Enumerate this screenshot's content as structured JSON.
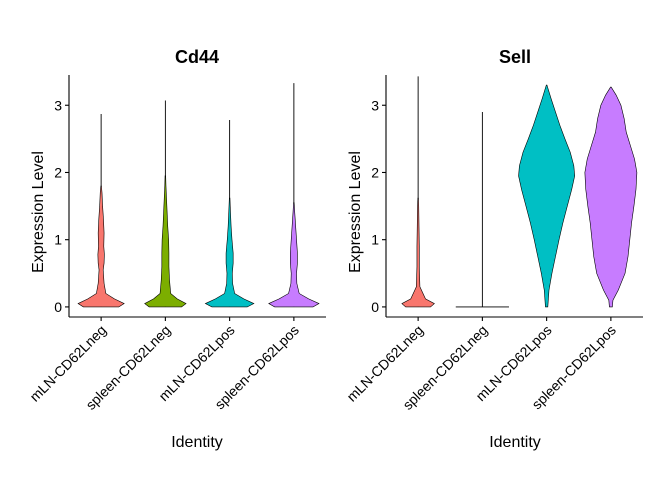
{
  "chart_data": [
    {
      "type": "violin",
      "title": "Cd44",
      "xlabel": "Identity",
      "ylabel": "Expression Level",
      "ylim": [
        -0.15,
        3.45
      ],
      "yticks": [
        0,
        1,
        2,
        3
      ],
      "categories": [
        "mLN-CD62Lneg",
        "spleen-CD62Lneg",
        "mLN-CD62Lpos",
        "spleen-CD62Lpos"
      ],
      "colors": [
        "#F8766D",
        "#7CAE00",
        "#00BFC4",
        "#C77CFF"
      ],
      "series": [
        {
          "max": 2.87,
          "upper": 1.8,
          "shape": [
            [
              0,
              0.6
            ],
            [
              0.05,
              0.78
            ],
            [
              0.12,
              0.45
            ],
            [
              0.2,
              0.16
            ],
            [
              0.35,
              0.1
            ],
            [
              0.55,
              0.07
            ],
            [
              0.65,
              0.1
            ],
            [
              0.78,
              0.11
            ],
            [
              0.9,
              0.09
            ],
            [
              1.1,
              0.1
            ],
            [
              1.3,
              0.08
            ],
            [
              1.5,
              0.05
            ],
            [
              1.7,
              0.03
            ],
            [
              1.8,
              0.01
            ]
          ]
        },
        {
          "max": 3.07,
          "upper": 1.95,
          "shape": [
            [
              0,
              0.55
            ],
            [
              0.05,
              0.7
            ],
            [
              0.12,
              0.4
            ],
            [
              0.2,
              0.18
            ],
            [
              0.4,
              0.14
            ],
            [
              0.6,
              0.12
            ],
            [
              0.8,
              0.12
            ],
            [
              1.0,
              0.11
            ],
            [
              1.2,
              0.08
            ],
            [
              1.4,
              0.06
            ],
            [
              1.6,
              0.04
            ],
            [
              1.8,
              0.02
            ],
            [
              1.95,
              0.01
            ]
          ]
        },
        {
          "max": 2.78,
          "upper": 1.62,
          "shape": [
            [
              0,
              0.6
            ],
            [
              0.05,
              0.82
            ],
            [
              0.12,
              0.48
            ],
            [
              0.2,
              0.17
            ],
            [
              0.35,
              0.1
            ],
            [
              0.5,
              0.09
            ],
            [
              0.65,
              0.12
            ],
            [
              0.8,
              0.12
            ],
            [
              1.0,
              0.08
            ],
            [
              1.2,
              0.05
            ],
            [
              1.4,
              0.03
            ],
            [
              1.62,
              0.01
            ]
          ]
        },
        {
          "max": 3.33,
          "upper": 1.55,
          "shape": [
            [
              0,
              0.65
            ],
            [
              0.05,
              0.85
            ],
            [
              0.12,
              0.5
            ],
            [
              0.2,
              0.18
            ],
            [
              0.35,
              0.1
            ],
            [
              0.5,
              0.09
            ],
            [
              0.65,
              0.12
            ],
            [
              0.8,
              0.12
            ],
            [
              1.0,
              0.09
            ],
            [
              1.2,
              0.06
            ],
            [
              1.4,
              0.03
            ],
            [
              1.55,
              0.01
            ]
          ]
        }
      ]
    },
    {
      "type": "violin",
      "title": "Sell",
      "xlabel": "Identity",
      "ylabel": "Expression Level",
      "ylim": [
        -0.15,
        3.45
      ],
      "yticks": [
        0,
        1,
        2,
        3
      ],
      "categories": [
        "mLN-CD62Lneg",
        "spleen-CD62Lneg",
        "mLN-CD62Lpos",
        "spleen-CD62Lpos"
      ],
      "colors": [
        "#F8766D",
        "#7CAE00",
        "#00BFC4",
        "#C77CFF"
      ],
      "series": [
        {
          "max": 3.43,
          "upper": 1.62,
          "shape": [
            [
              0,
              0.42
            ],
            [
              0.05,
              0.55
            ],
            [
              0.12,
              0.25
            ],
            [
              0.3,
              0.06
            ],
            [
              0.6,
              0.04
            ],
            [
              0.9,
              0.04
            ],
            [
              1.2,
              0.03
            ],
            [
              1.5,
              0.02
            ],
            [
              1.62,
              0.01
            ]
          ]
        },
        {
          "max": 2.9,
          "upper": 0.0,
          "shape": [
            [
              0,
              0.9
            ]
          ]
        },
        {
          "max": 3.3,
          "upper": 3.3,
          "shape": [
            [
              0,
              0.04
            ],
            [
              0.25,
              0.08
            ],
            [
              0.5,
              0.18
            ],
            [
              0.75,
              0.3
            ],
            [
              1.0,
              0.42
            ],
            [
              1.25,
              0.55
            ],
            [
              1.5,
              0.7
            ],
            [
              1.75,
              0.85
            ],
            [
              1.95,
              0.95
            ],
            [
              2.1,
              0.92
            ],
            [
              2.3,
              0.8
            ],
            [
              2.5,
              0.62
            ],
            [
              2.7,
              0.45
            ],
            [
              2.9,
              0.3
            ],
            [
              3.1,
              0.15
            ],
            [
              3.3,
              0.01
            ]
          ]
        },
        {
          "max": 3.27,
          "upper": 3.27,
          "shape": [
            [
              0,
              0.05
            ],
            [
              0.1,
              0.07
            ],
            [
              0.25,
              0.25
            ],
            [
              0.5,
              0.48
            ],
            [
              0.75,
              0.58
            ],
            [
              1.0,
              0.64
            ],
            [
              1.25,
              0.7
            ],
            [
              1.5,
              0.78
            ],
            [
              1.75,
              0.85
            ],
            [
              2.0,
              0.88
            ],
            [
              2.2,
              0.8
            ],
            [
              2.4,
              0.66
            ],
            [
              2.6,
              0.52
            ],
            [
              2.8,
              0.45
            ],
            [
              3.0,
              0.34
            ],
            [
              3.15,
              0.18
            ],
            [
              3.27,
              0.01
            ]
          ]
        }
      ]
    }
  ]
}
